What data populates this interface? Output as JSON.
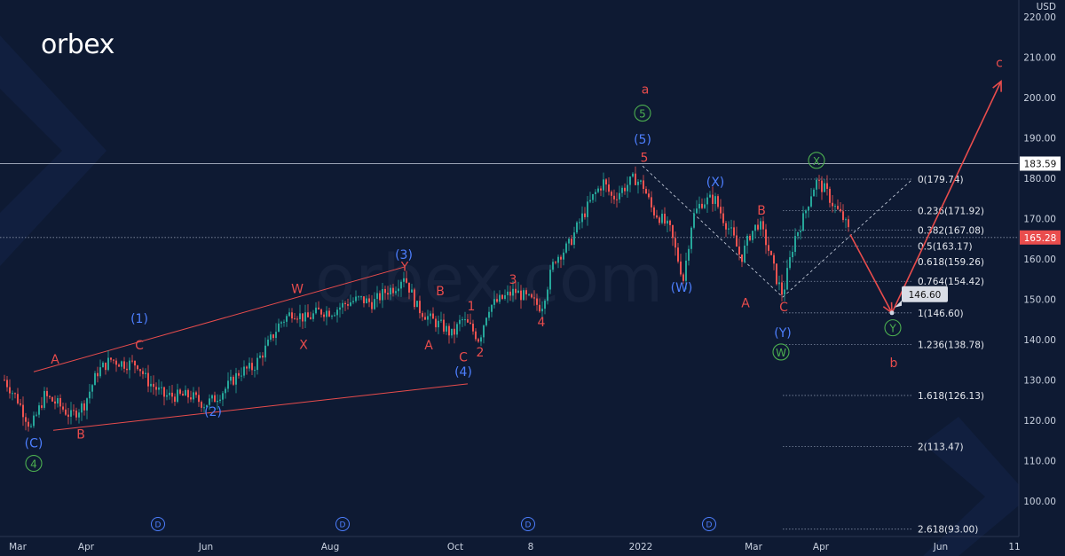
{
  "logo": {
    "text": "orbex"
  },
  "watermark": "orbex.com",
  "chart_data": {
    "type": "candlestick",
    "currency": "USD",
    "yticks": [
      100,
      110,
      120,
      130,
      140,
      150,
      160,
      170,
      180,
      190,
      200,
      210,
      220
    ],
    "ytick_labels": [
      "100.00",
      "110.00",
      "120.00",
      "130.00",
      "140.00",
      "150.00",
      "160.00",
      "170.00",
      "180.00",
      "190.00",
      "200.00",
      "210.00",
      "220.00"
    ],
    "ylim": [
      91.5,
      222.5
    ],
    "xticks": [
      {
        "label": "Mar",
        "x": 20
      },
      {
        "label": "Apr",
        "x": 97
      },
      {
        "label": "Jun",
        "x": 232
      },
      {
        "label": "Aug",
        "x": 372
      },
      {
        "label": "Oct",
        "x": 513
      },
      {
        "label": "8",
        "x": 598
      },
      {
        "label": "2022",
        "x": 722
      },
      {
        "label": "Mar",
        "x": 849
      },
      {
        "label": "Apr",
        "x": 925
      },
      {
        "label": "Jun",
        "x": 1060
      },
      {
        "label": "11",
        "x": 1143
      }
    ],
    "price_anchors": [
      [
        5,
        130
      ],
      [
        20,
        125
      ],
      [
        35,
        118
      ],
      [
        50,
        126
      ],
      [
        65,
        124
      ],
      [
        80,
        121
      ],
      [
        95,
        124
      ],
      [
        110,
        132
      ],
      [
        125,
        135
      ],
      [
        140,
        134
      ],
      [
        155,
        134
      ],
      [
        165,
        130
      ],
      [
        175,
        128
      ],
      [
        185,
        126
      ],
      [
        200,
        126
      ],
      [
        215,
        126
      ],
      [
        230,
        124
      ],
      [
        240,
        125
      ],
      [
        255,
        128
      ],
      [
        270,
        132
      ],
      [
        285,
        133
      ],
      [
        300,
        138
      ],
      [
        315,
        144
      ],
      [
        330,
        147
      ],
      [
        345,
        145
      ],
      [
        360,
        147
      ],
      [
        375,
        147
      ],
      [
        390,
        149
      ],
      [
        405,
        150
      ],
      [
        420,
        149
      ],
      [
        435,
        152
      ],
      [
        445,
        153
      ],
      [
        455,
        156
      ],
      [
        470,
        148
      ],
      [
        485,
        145
      ],
      [
        500,
        143
      ],
      [
        510,
        141
      ],
      [
        520,
        145
      ],
      [
        530,
        143
      ],
      [
        540,
        140
      ],
      [
        550,
        148
      ],
      [
        565,
        150
      ],
      [
        580,
        152
      ],
      [
        595,
        150
      ],
      [
        610,
        148
      ],
      [
        625,
        160
      ],
      [
        640,
        163
      ],
      [
        655,
        170
      ],
      [
        670,
        176
      ],
      [
        680,
        179
      ],
      [
        690,
        175
      ],
      [
        700,
        177
      ],
      [
        715,
        180
      ],
      [
        725,
        178
      ],
      [
        735,
        172
      ],
      [
        745,
        170
      ],
      [
        755,
        167
      ],
      [
        770,
        155
      ],
      [
        780,
        170
      ],
      [
        790,
        174
      ],
      [
        805,
        175
      ],
      [
        815,
        170
      ],
      [
        825,
        166
      ],
      [
        835,
        160
      ],
      [
        845,
        166
      ],
      [
        855,
        169
      ],
      [
        865,
        163
      ],
      [
        875,
        155
      ],
      [
        882,
        151
      ],
      [
        895,
        165
      ],
      [
        905,
        170
      ],
      [
        915,
        177
      ],
      [
        920,
        179
      ],
      [
        930,
        177
      ],
      [
        940,
        173
      ],
      [
        950,
        170
      ],
      [
        958,
        166
      ]
    ],
    "fib_levels": [
      {
        "ratio": "0",
        "price": 179.74
      },
      {
        "ratio": "0.236",
        "price": 171.92
      },
      {
        "ratio": "0.382",
        "price": 167.08
      },
      {
        "ratio": "0.5",
        "price": 163.17
      },
      {
        "ratio": "0.618",
        "price": 159.26
      },
      {
        "ratio": "0.764",
        "price": 154.42
      },
      {
        "ratio": "1",
        "price": 146.6
      },
      {
        "ratio": "1.236",
        "price": 138.78
      },
      {
        "ratio": "1.618",
        "price": 126.13
      },
      {
        "ratio": "2",
        "price": 113.47
      },
      {
        "ratio": "2.618",
        "price": 93.0
      }
    ],
    "hlines": [
      {
        "price": 183.59,
        "label": "183.59",
        "style": "solid"
      },
      {
        "price": 165.28,
        "label": "165.28",
        "style": "dotted"
      }
    ],
    "target": {
      "price": 146.6,
      "label": "146.60"
    },
    "projection": [
      [
        958,
        166
      ],
      [
        1005,
        146.6
      ],
      [
        1128,
        204
      ]
    ],
    "wave_labels": [
      {
        "text": "a",
        "x": 727,
        "price": 201.0,
        "color": "#e84c4c"
      },
      {
        "text": "5",
        "x": 724,
        "price": 195.0,
        "color": "#4caf50",
        "circled": true
      },
      {
        "text": "(5)",
        "x": 724,
        "price": 188.5,
        "color": "#4d7fff"
      },
      {
        "text": "5",
        "x": 726,
        "price": 184.0,
        "color": "#e84c4c"
      },
      {
        "text": "c",
        "x": 1126,
        "price": 207.5,
        "color": "#e84c4c"
      },
      {
        "text": "X",
        "x": 920,
        "price": 183.3,
        "color": "#4caf50",
        "circled": true
      },
      {
        "text": "(X)",
        "x": 806,
        "price": 178.0,
        "color": "#4d7fff"
      },
      {
        "text": "B",
        "x": 858,
        "price": 171.0,
        "color": "#e84c4c"
      },
      {
        "text": "(3)",
        "x": 455,
        "price": 160.0,
        "color": "#4d7fff"
      },
      {
        "text": "Y",
        "x": 456,
        "price": 157.0,
        "color": "#e84c4c"
      },
      {
        "text": "W",
        "x": 335,
        "price": 151.5,
        "color": "#e84c4c"
      },
      {
        "text": "B",
        "x": 496,
        "price": 151.0,
        "color": "#e84c4c"
      },
      {
        "text": "3",
        "x": 578,
        "price": 153.8,
        "color": "#e84c4c"
      },
      {
        "text": "1",
        "x": 531,
        "price": 147.2,
        "color": "#e84c4c"
      },
      {
        "text": "(W)",
        "x": 768,
        "price": 151.8,
        "color": "#4d7fff"
      },
      {
        "text": "A",
        "x": 840,
        "price": 148.0,
        "color": "#e84c4c"
      },
      {
        "text": "C",
        "x": 883,
        "price": 147.0,
        "color": "#e84c4c"
      },
      {
        "text": "4",
        "x": 610,
        "price": 143.3,
        "color": "#e84c4c"
      },
      {
        "text": "(1)",
        "x": 157,
        "price": 144.1,
        "color": "#4d7fff"
      },
      {
        "text": "(Y)",
        "x": 882,
        "price": 140.6,
        "color": "#4d7fff"
      },
      {
        "text": "Y",
        "x": 1006,
        "price": 141.8,
        "color": "#4caf50",
        "circled": true
      },
      {
        "text": "C",
        "x": 157,
        "price": 137.5,
        "color": "#e84c4c"
      },
      {
        "text": "X",
        "x": 342,
        "price": 137.6,
        "color": "#e84c4c"
      },
      {
        "text": "A",
        "x": 483,
        "price": 137.5,
        "color": "#e84c4c"
      },
      {
        "text": "W",
        "x": 880,
        "price": 135.8,
        "color": "#4caf50",
        "circled": true
      },
      {
        "text": "2",
        "x": 541,
        "price": 135.8,
        "color": "#e84c4c"
      },
      {
        "text": "b",
        "x": 1007,
        "price": 133.2,
        "color": "#e84c4c"
      },
      {
        "text": "C",
        "x": 522,
        "price": 134.6,
        "color": "#e84c4c"
      },
      {
        "text": "A",
        "x": 62,
        "price": 134.0,
        "color": "#e84c4c"
      },
      {
        "text": "(4)",
        "x": 522,
        "price": 130.9,
        "color": "#4d7fff"
      },
      {
        "text": "(2)",
        "x": 240,
        "price": 121.1,
        "color": "#4d7fff"
      },
      {
        "text": "B",
        "x": 91,
        "price": 115.5,
        "color": "#e84c4c"
      },
      {
        "text": "(C)",
        "x": 38,
        "price": 113.3,
        "color": "#4d7fff"
      },
      {
        "text": "4",
        "x": 38,
        "price": 108.2,
        "color": "#4caf50",
        "circled": true
      }
    ],
    "channel_lines": [
      [
        [
          38,
          132.0
        ],
        [
          456,
          158.0
        ]
      ],
      [
        [
          60,
          117.5
        ],
        [
          527,
          129.0
        ]
      ]
    ],
    "dashed_lines": [
      [
        [
          724,
          183.0
        ],
        [
          882,
          150.5
        ]
      ],
      [
        [
          882,
          150.5
        ],
        [
          1027,
          179.5
        ]
      ]
    ],
    "d_markers": [
      178,
      386,
      595,
      799
    ],
    "d_label": "D",
    "colors": {
      "bull": "#26a69a",
      "bear": "#ef5350",
      "red": "#e84c4c",
      "green": "#4caf50",
      "blue": "#4d7fff",
      "bg": "#0e1a33"
    }
  }
}
